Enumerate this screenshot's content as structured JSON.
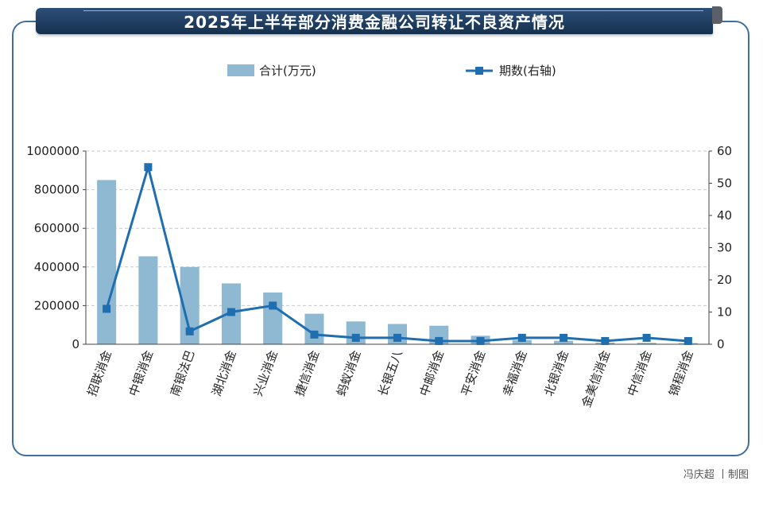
{
  "header": {
    "title": "2025年上半年部分消费金融公司转让不良资产情况"
  },
  "credit": "冯庆超 丨制图",
  "colors": {
    "bar": "#8fb8d3",
    "line": "#1f6fb0",
    "banner": "#1e3a5f",
    "border": "#3f6f9e"
  },
  "chart_data": {
    "type": "bar+line",
    "categories": [
      "招联消金",
      "中银消金",
      "南银法巴",
      "湖北消金",
      "兴业消金",
      "捷信消金",
      "蚂蚁消金",
      "长银五八",
      "中邮消金",
      "平安消金",
      "幸福消金",
      "北银消金",
      "金美信消金",
      "中信消金",
      "锦程消金"
    ],
    "series": [
      {
        "name": "合计(万元)",
        "type": "bar",
        "axis": "left",
        "values": [
          850000,
          455000,
          400000,
          315000,
          268000,
          158000,
          118000,
          105000,
          96000,
          44000,
          22000,
          18000,
          8000,
          7000,
          6000
        ]
      },
      {
        "name": "期数(右轴)",
        "type": "line",
        "axis": "right",
        "values": [
          11,
          55,
          4,
          10,
          12,
          3,
          2,
          2,
          1,
          1,
          2,
          2,
          1,
          2,
          1
        ]
      }
    ],
    "left_axis": {
      "min": 0,
      "max": 1000000,
      "ticks": [
        "0",
        "200000",
        "400000",
        "600000",
        "800000",
        "1000000"
      ]
    },
    "right_axis": {
      "min": 0,
      "max": 60,
      "ticks": [
        "0",
        "10",
        "20",
        "30",
        "40",
        "50",
        "60"
      ]
    },
    "grid": "horizontal dashed",
    "legend": "top-center"
  }
}
